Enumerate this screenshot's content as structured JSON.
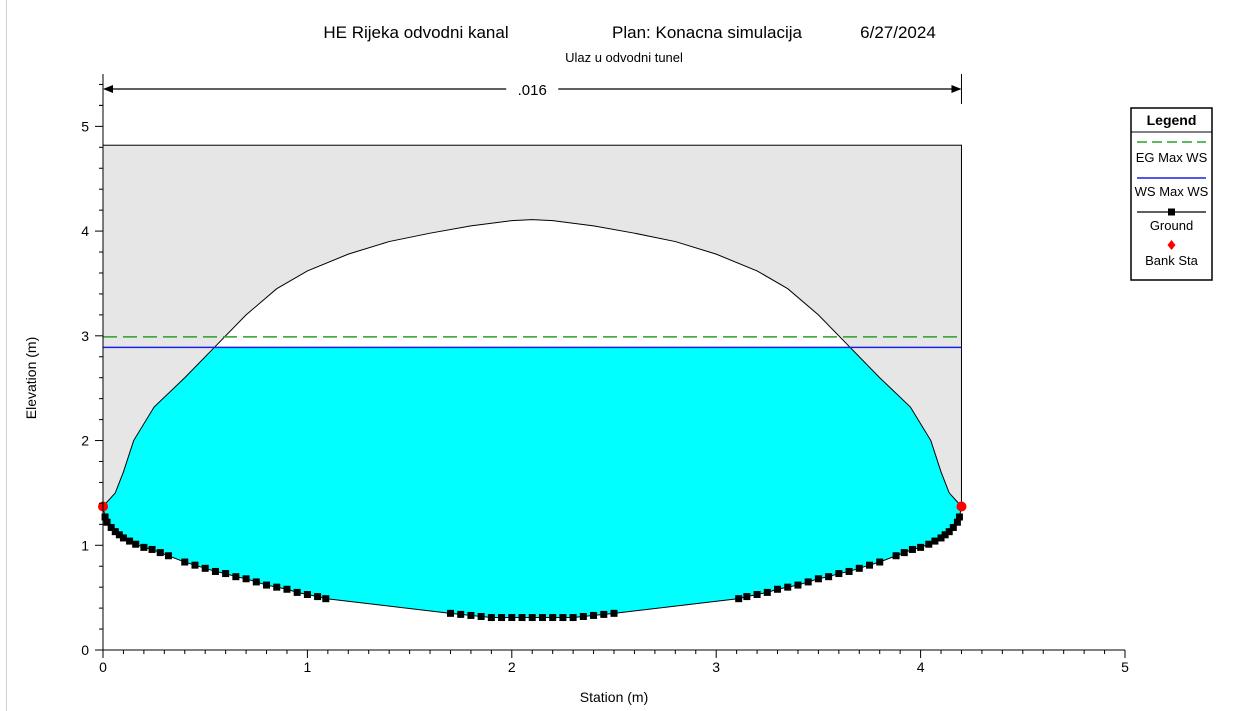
{
  "chart_data": {
    "type": "area",
    "title": "HE Rijeka odvodni kanal",
    "plan": "Plan: Konacna simulacija",
    "date": "6/27/2024",
    "subtitle": "Ulaz u odvodni tunel",
    "xlabel": "Station (m)",
    "ylabel": "Elevation (m)",
    "xlim": [
      0,
      5
    ],
    "ylim": [
      0,
      5.5
    ],
    "x_ticks": [
      "0",
      "1",
      "2",
      "3",
      "4",
      "5"
    ],
    "y_ticks": [
      "0",
      "1",
      "2",
      "3",
      "4",
      "5"
    ],
    "manning_label": ".016",
    "manning_extent": [
      0,
      4.2
    ],
    "grid": false,
    "legend_position": "top-right",
    "legend": {
      "title": "Legend",
      "items": [
        {
          "name": "EG Max WS",
          "style": "dashed-line",
          "color": "#2ca02c"
        },
        {
          "name": "WS Max WS",
          "style": "line",
          "color": "#1f1fe0"
        },
        {
          "name": "Ground",
          "style": "line-square",
          "color": "#000000"
        },
        {
          "name": "Bank Sta",
          "style": "diamond",
          "color": "#ff0000"
        }
      ]
    },
    "eg_max_ws": 2.99,
    "ws_max_ws": 2.89,
    "box_top": 4.82,
    "box_x": [
      0,
      4.2
    ],
    "colors": {
      "water": "#00ffff",
      "box_fill": "#e6e6e6",
      "eg_line": "#2ca02c",
      "ws_line": "#1f1fe0",
      "bank": "#ff0000"
    },
    "ground_points": [
      [
        0.0,
        1.37
      ],
      [
        0.01,
        1.27
      ],
      [
        0.02,
        1.22
      ],
      [
        0.04,
        1.17
      ],
      [
        0.06,
        1.13
      ],
      [
        0.08,
        1.1
      ],
      [
        0.1,
        1.07
      ],
      [
        0.13,
        1.04
      ],
      [
        0.16,
        1.01
      ],
      [
        0.2,
        0.98
      ],
      [
        0.24,
        0.96
      ],
      [
        0.28,
        0.93
      ],
      [
        0.32,
        0.9
      ],
      [
        0.4,
        0.84
      ],
      [
        0.45,
        0.81
      ],
      [
        0.5,
        0.78
      ],
      [
        0.55,
        0.75
      ],
      [
        0.6,
        0.73
      ],
      [
        0.65,
        0.7
      ],
      [
        0.7,
        0.68
      ],
      [
        0.75,
        0.65
      ],
      [
        0.8,
        0.62
      ],
      [
        0.85,
        0.6
      ],
      [
        0.9,
        0.58
      ],
      [
        0.95,
        0.55
      ],
      [
        1.0,
        0.53
      ],
      [
        1.05,
        0.51
      ],
      [
        1.09,
        0.49
      ],
      [
        1.7,
        0.35
      ],
      [
        1.75,
        0.34
      ],
      [
        1.8,
        0.33
      ],
      [
        1.85,
        0.32
      ],
      [
        1.9,
        0.31
      ],
      [
        1.95,
        0.31
      ],
      [
        2.0,
        0.31
      ],
      [
        2.05,
        0.31
      ],
      [
        2.1,
        0.31
      ],
      [
        2.15,
        0.31
      ],
      [
        2.2,
        0.31
      ],
      [
        2.25,
        0.31
      ],
      [
        2.3,
        0.31
      ],
      [
        2.35,
        0.32
      ],
      [
        2.4,
        0.33
      ],
      [
        2.45,
        0.34
      ],
      [
        2.5,
        0.35
      ],
      [
        3.11,
        0.49
      ],
      [
        3.15,
        0.51
      ],
      [
        3.2,
        0.53
      ],
      [
        3.25,
        0.55
      ],
      [
        3.3,
        0.58
      ],
      [
        3.35,
        0.6
      ],
      [
        3.4,
        0.62
      ],
      [
        3.45,
        0.65
      ],
      [
        3.5,
        0.68
      ],
      [
        3.55,
        0.7
      ],
      [
        3.6,
        0.73
      ],
      [
        3.65,
        0.75
      ],
      [
        3.7,
        0.78
      ],
      [
        3.75,
        0.81
      ],
      [
        3.8,
        0.84
      ],
      [
        3.88,
        0.9
      ],
      [
        3.92,
        0.93
      ],
      [
        3.96,
        0.96
      ],
      [
        4.0,
        0.98
      ],
      [
        4.04,
        1.01
      ],
      [
        4.07,
        1.04
      ],
      [
        4.1,
        1.07
      ],
      [
        4.12,
        1.1
      ],
      [
        4.14,
        1.13
      ],
      [
        4.16,
        1.17
      ],
      [
        4.18,
        1.22
      ],
      [
        4.19,
        1.27
      ],
      [
        4.2,
        1.37
      ]
    ],
    "crown_points": [
      [
        0.0,
        1.37
      ],
      [
        0.06,
        1.5
      ],
      [
        0.1,
        1.7
      ],
      [
        0.15,
        2.0
      ],
      [
        0.25,
        2.32
      ],
      [
        0.4,
        2.6
      ],
      [
        0.55,
        2.9
      ],
      [
        0.7,
        3.2
      ],
      [
        0.85,
        3.45
      ],
      [
        1.0,
        3.62
      ],
      [
        1.2,
        3.78
      ],
      [
        1.4,
        3.9
      ],
      [
        1.6,
        3.98
      ],
      [
        1.8,
        4.05
      ],
      [
        2.0,
        4.1
      ],
      [
        2.1,
        4.11
      ],
      [
        2.2,
        4.1
      ],
      [
        2.4,
        4.05
      ],
      [
        2.6,
        3.98
      ],
      [
        2.8,
        3.9
      ],
      [
        3.0,
        3.78
      ],
      [
        3.2,
        3.62
      ],
      [
        3.35,
        3.45
      ],
      [
        3.5,
        3.2
      ],
      [
        3.65,
        2.9
      ],
      [
        3.8,
        2.6
      ],
      [
        3.95,
        2.32
      ],
      [
        4.05,
        2.0
      ],
      [
        4.1,
        1.7
      ],
      [
        4.14,
        1.5
      ],
      [
        4.2,
        1.37
      ]
    ],
    "bank_stations": [
      [
        0.0,
        1.37
      ],
      [
        4.2,
        1.37
      ]
    ]
  }
}
